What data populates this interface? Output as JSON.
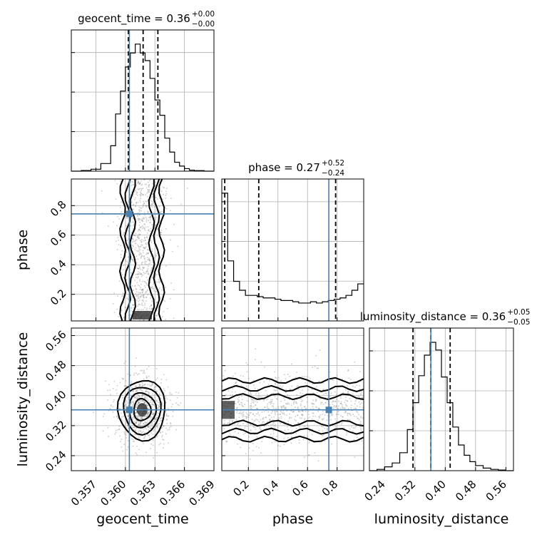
{
  "chart_data": {
    "type": "corner",
    "parameters": [
      "geocent_time",
      "phase",
      "luminosity_distance"
    ],
    "axis_labels": {
      "geocent_time": "geocent_time",
      "phase": "phase",
      "luminosity_distance": "luminosity_distance"
    },
    "ranges": {
      "geocent_time": [
        0.3545,
        0.369
      ],
      "phase": [
        0.02,
        0.98
      ],
      "luminosity_distance": [
        0.2,
        0.58
      ]
    },
    "ticks": {
      "geocent_time": {
        "values": [
          0.357,
          0.36,
          0.363,
          0.366,
          0.369
        ],
        "labels": [
          "0.357",
          "0.360",
          "0.363",
          "0.366",
          "0.369"
        ]
      },
      "phase": {
        "values": [
          0.2,
          0.4,
          0.6,
          0.8
        ],
        "labels": [
          "0.2",
          "0.4",
          "0.6",
          "0.8"
        ]
      },
      "luminosity_distance": {
        "values": [
          0.24,
          0.32,
          0.4,
          0.48,
          0.56
        ],
        "labels": [
          "0.24",
          "0.32",
          "0.40",
          "0.48",
          "0.56"
        ]
      }
    },
    "titles": {
      "geocent_time": {
        "name": "geocent_time",
        "median": "0.36",
        "plus": "+0.00",
        "minus": "−0.00"
      },
      "phase": {
        "name": "phase",
        "median": "0.27",
        "plus": "+0.52",
        "minus": "−0.24"
      },
      "luminosity_distance": {
        "name": "luminosity_distance",
        "median": "0.36",
        "plus": "+0.05",
        "minus": "−0.05"
      }
    },
    "truths": {
      "geocent_time": 0.3604,
      "phase": 0.744,
      "luminosity_distance": 0.362
    },
    "quantiles": {
      "geocent_time": [
        0.3603,
        0.3618,
        0.3633
      ],
      "phase": [
        0.04,
        0.27,
        0.79
      ],
      "luminosity_distance": [
        0.315,
        0.362,
        0.413
      ]
    },
    "histograms": {
      "geocent_time": {
        "edges": [
          0.3545,
          0.3555,
          0.3565,
          0.3575,
          0.3585,
          0.359,
          0.3595,
          0.36,
          0.3605,
          0.361,
          0.3615,
          0.362,
          0.3625,
          0.363,
          0.3635,
          0.364,
          0.3645,
          0.365,
          0.3655,
          0.366,
          0.3665,
          0.367,
          0.368,
          0.369
        ],
        "counts": [
          0.0,
          0.005,
          0.015,
          0.06,
          0.2,
          0.45,
          0.63,
          0.82,
          0.93,
          1.0,
          0.93,
          0.87,
          0.73,
          0.56,
          0.44,
          0.26,
          0.15,
          0.07,
          0.04,
          0.02,
          0.008,
          0.004,
          0.0
        ]
      },
      "phase": {
        "edges": [
          0.02,
          0.06,
          0.1,
          0.14,
          0.18,
          0.22,
          0.26,
          0.3,
          0.34,
          0.38,
          0.42,
          0.46,
          0.5,
          0.54,
          0.58,
          0.62,
          0.66,
          0.7,
          0.74,
          0.78,
          0.82,
          0.86,
          0.9,
          0.94,
          0.98
        ],
        "counts": [
          1.0,
          0.47,
          0.31,
          0.24,
          0.2,
          0.2,
          0.19,
          0.18,
          0.18,
          0.17,
          0.16,
          0.16,
          0.15,
          0.14,
          0.14,
          0.15,
          0.14,
          0.15,
          0.16,
          0.17,
          0.18,
          0.2,
          0.24,
          0.29
        ]
      },
      "luminosity_distance": {
        "edges": [
          0.2,
          0.22,
          0.24,
          0.26,
          0.28,
          0.3,
          0.315,
          0.33,
          0.345,
          0.36,
          0.375,
          0.39,
          0.405,
          0.42,
          0.435,
          0.45,
          0.465,
          0.48,
          0.5,
          0.52,
          0.54,
          0.56,
          0.58
        ],
        "counts": [
          0.0,
          0.01,
          0.03,
          0.06,
          0.14,
          0.32,
          0.53,
          0.74,
          0.9,
          1.0,
          0.94,
          0.73,
          0.53,
          0.34,
          0.2,
          0.12,
          0.07,
          0.04,
          0.02,
          0.01,
          0.005,
          0.0
        ]
      }
    },
    "density_2d": [
      {
        "x": "geocent_time",
        "y": "phase",
        "contour_levels": 3,
        "scatter_center": [
          0.3617,
          0.5
        ],
        "scatter_spread": [
          0.0011,
          0.28
        ]
      },
      {
        "x": "geocent_time",
        "y": "luminosity_distance",
        "contour_levels": 4,
        "center": [
          0.3617,
          0.362
        ],
        "spread": [
          0.0012,
          0.04
        ]
      },
      {
        "x": "phase",
        "y": "luminosity_distance",
        "contour_levels": 3,
        "center": [
          0.5,
          0.362
        ],
        "spread": [
          0.28,
          0.04
        ]
      }
    ]
  }
}
